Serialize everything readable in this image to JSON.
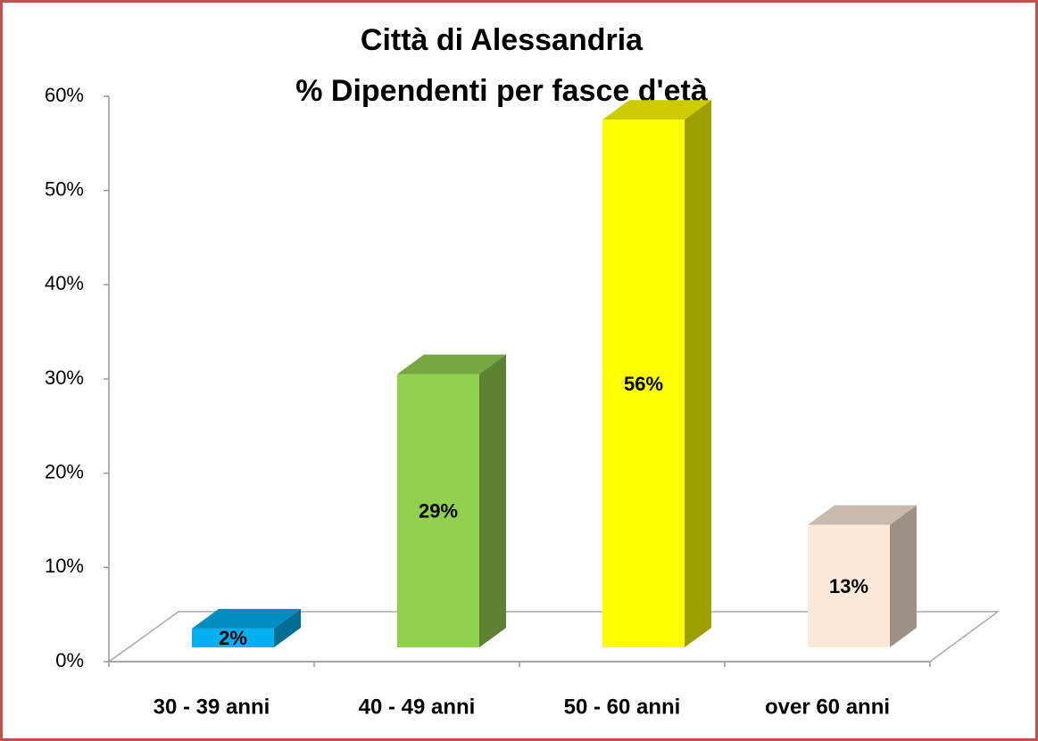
{
  "chart_data": {
    "type": "bar3d",
    "title": [
      "Città di Alessandria",
      "% Dipendenti per fasce d'età"
    ],
    "categories": [
      "30 - 39 anni",
      "40 - 49 anni",
      "50 - 60 anni",
      "over 60 anni"
    ],
    "values": [
      2,
      29,
      56,
      13
    ],
    "value_labels": [
      "2%",
      "29%",
      "56%",
      "13%"
    ],
    "colors": [
      "#00b0f0",
      "#92d050",
      "#ffff00",
      "#fde9d9"
    ],
    "ylim": [
      0,
      60
    ],
    "yticks": [
      {
        "value": 0,
        "label": "0%"
      },
      {
        "value": 10,
        "label": "10%"
      },
      {
        "value": 20,
        "label": "20%"
      },
      {
        "value": 30,
        "label": "30%"
      },
      {
        "value": 40,
        "label": "40%"
      },
      {
        "value": 50,
        "label": "50%"
      },
      {
        "value": 60,
        "label": "60%"
      }
    ]
  }
}
